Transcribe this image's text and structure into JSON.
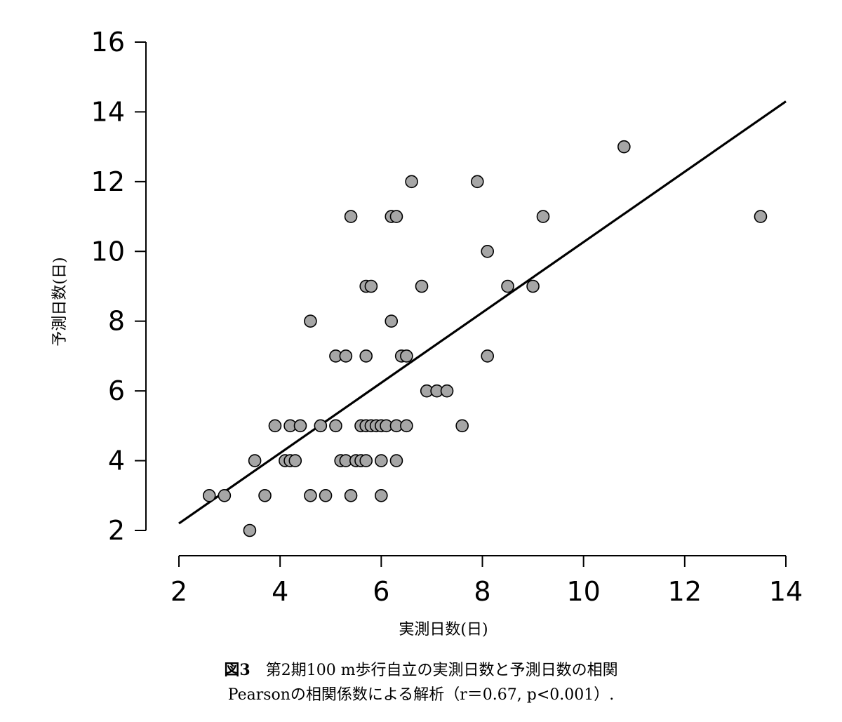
{
  "chart_data": {
    "type": "scatter",
    "xlabel": "実測日数(日)",
    "ylabel": "予測日数(日)",
    "xlim": [
      2,
      14
    ],
    "ylim": [
      2,
      16
    ],
    "xticks": [
      2,
      4,
      6,
      8,
      10,
      12,
      14
    ],
    "yticks": [
      2,
      4,
      6,
      8,
      10,
      12,
      14,
      16
    ],
    "grid": false,
    "point_color": "#a6a6a6",
    "regression_line": {
      "x": [
        2,
        14
      ],
      "y": [
        2.2,
        14.3
      ]
    },
    "points": [
      [
        2.6,
        3
      ],
      [
        2.9,
        3
      ],
      [
        3.4,
        2
      ],
      [
        3.5,
        4
      ],
      [
        3.7,
        3
      ],
      [
        3.9,
        5
      ],
      [
        4.1,
        4
      ],
      [
        4.2,
        5
      ],
      [
        4.2,
        4
      ],
      [
        4.3,
        4
      ],
      [
        4.4,
        5
      ],
      [
        4.6,
        8
      ],
      [
        4.6,
        3
      ],
      [
        4.8,
        5
      ],
      [
        4.9,
        3
      ],
      [
        5.1,
        7
      ],
      [
        5.1,
        5
      ],
      [
        5.2,
        4
      ],
      [
        5.3,
        7
      ],
      [
        5.3,
        4
      ],
      [
        5.4,
        11
      ],
      [
        5.4,
        3
      ],
      [
        5.5,
        4
      ],
      [
        5.6,
        5
      ],
      [
        5.6,
        4
      ],
      [
        5.7,
        9
      ],
      [
        5.7,
        7
      ],
      [
        5.7,
        5
      ],
      [
        5.7,
        4
      ],
      [
        5.8,
        9
      ],
      [
        5.8,
        5
      ],
      [
        5.9,
        5
      ],
      [
        6.0,
        5
      ],
      [
        6.0,
        4
      ],
      [
        6.0,
        3
      ],
      [
        6.1,
        5
      ],
      [
        6.2,
        11
      ],
      [
        6.2,
        8
      ],
      [
        6.3,
        11
      ],
      [
        6.3,
        5
      ],
      [
        6.3,
        4
      ],
      [
        6.4,
        7
      ],
      [
        6.5,
        7
      ],
      [
        6.5,
        5
      ],
      [
        6.6,
        12
      ],
      [
        6.8,
        9
      ],
      [
        6.9,
        6
      ],
      [
        7.1,
        6
      ],
      [
        7.3,
        6
      ],
      [
        7.6,
        5
      ],
      [
        7.9,
        12
      ],
      [
        8.1,
        10
      ],
      [
        8.1,
        7
      ],
      [
        8.5,
        9
      ],
      [
        9.0,
        9
      ],
      [
        9.2,
        11
      ],
      [
        10.8,
        13
      ],
      [
        13.5,
        11
      ]
    ]
  },
  "caption": {
    "figure_label": "図3",
    "line1": "第2期100 m歩行自立の実測日数と予測日数の相関",
    "line2": "Pearsonの相関係数による解析（r＝0.67, p<0.001）."
  }
}
